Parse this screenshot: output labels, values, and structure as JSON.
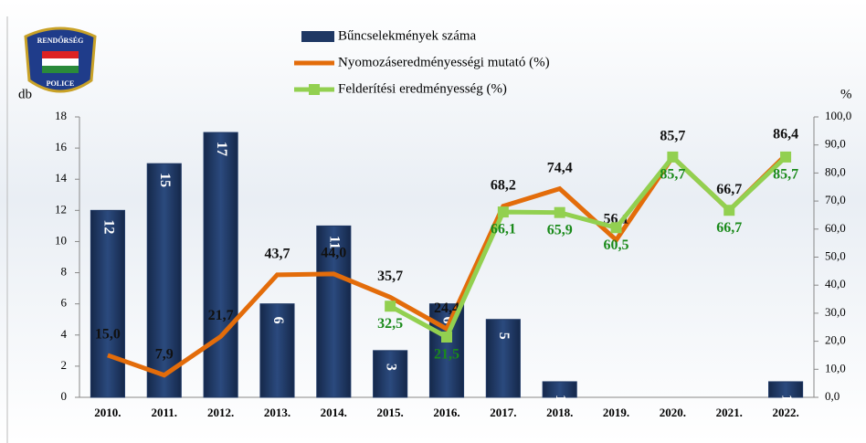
{
  "logo": {
    "top": "RENDŐRSÉG",
    "bottom": "POLICE"
  },
  "chart_data": {
    "type": "bar_line",
    "ylabel": "db",
    "y2label": "%",
    "categories": [
      "2010.",
      "2011.",
      "2012.",
      "2013.",
      "2014.",
      "2015.",
      "2016.",
      "2017.",
      "2018.",
      "2019.",
      "2020.",
      "2021.",
      "2022."
    ],
    "series": [
      {
        "name": "Bűncselekmények száma",
        "type": "bar",
        "color": "#1f3864",
        "values": [
          12,
          15,
          17,
          6,
          11,
          3,
          6,
          5,
          1,
          null,
          null,
          null,
          1
        ]
      },
      {
        "name": "Nyomozáseredményességi mutató (%)",
        "type": "line",
        "axis": "y2",
        "color": "#e36c0a",
        "values": [
          15.0,
          7.9,
          21.7,
          43.7,
          44.0,
          35.7,
          24.4,
          68.2,
          74.4,
          56.1,
          85.7,
          66.7,
          86.4
        ],
        "value_labels": [
          "15,0",
          "7,9",
          "21,7",
          "43,7",
          "44,0",
          "35,7",
          "24,4",
          "68,2",
          "74,4",
          "56,1",
          "85,7",
          "66,7",
          "86,4"
        ]
      },
      {
        "name": "Felderítési eredményesség (%)",
        "type": "line",
        "axis": "y2",
        "color": "#92d050",
        "marker": "square",
        "values": [
          null,
          null,
          null,
          null,
          null,
          32.5,
          21.5,
          66.1,
          65.9,
          60.5,
          85.7,
          66.7,
          85.7
        ],
        "value_labels": [
          null,
          null,
          null,
          null,
          null,
          "32,5",
          "21,5",
          "66,1",
          "65,9",
          "60,5",
          "85,7",
          "66,7",
          "85,7"
        ]
      }
    ],
    "ylim": [
      0,
      18
    ],
    "yticks": [
      0,
      2,
      4,
      6,
      8,
      10,
      12,
      14,
      16,
      18
    ],
    "y2lim": [
      0,
      100
    ],
    "y2ticks": [
      {
        "value": 0,
        "label": "0,0"
      },
      {
        "value": 10,
        "label": "10,0"
      },
      {
        "value": 20,
        "label": "20,0"
      },
      {
        "value": 30,
        "label": "30,0"
      },
      {
        "value": 40,
        "label": "40,0"
      },
      {
        "value": 50,
        "label": "50,0"
      },
      {
        "value": 60,
        "label": "60,0"
      },
      {
        "value": 70,
        "label": "70,0"
      },
      {
        "value": 80,
        "label": "80,0"
      },
      {
        "value": 90,
        "label": "90,0"
      },
      {
        "value": 100,
        "label": "100,0"
      }
    ],
    "grid": false,
    "legend": "top"
  }
}
